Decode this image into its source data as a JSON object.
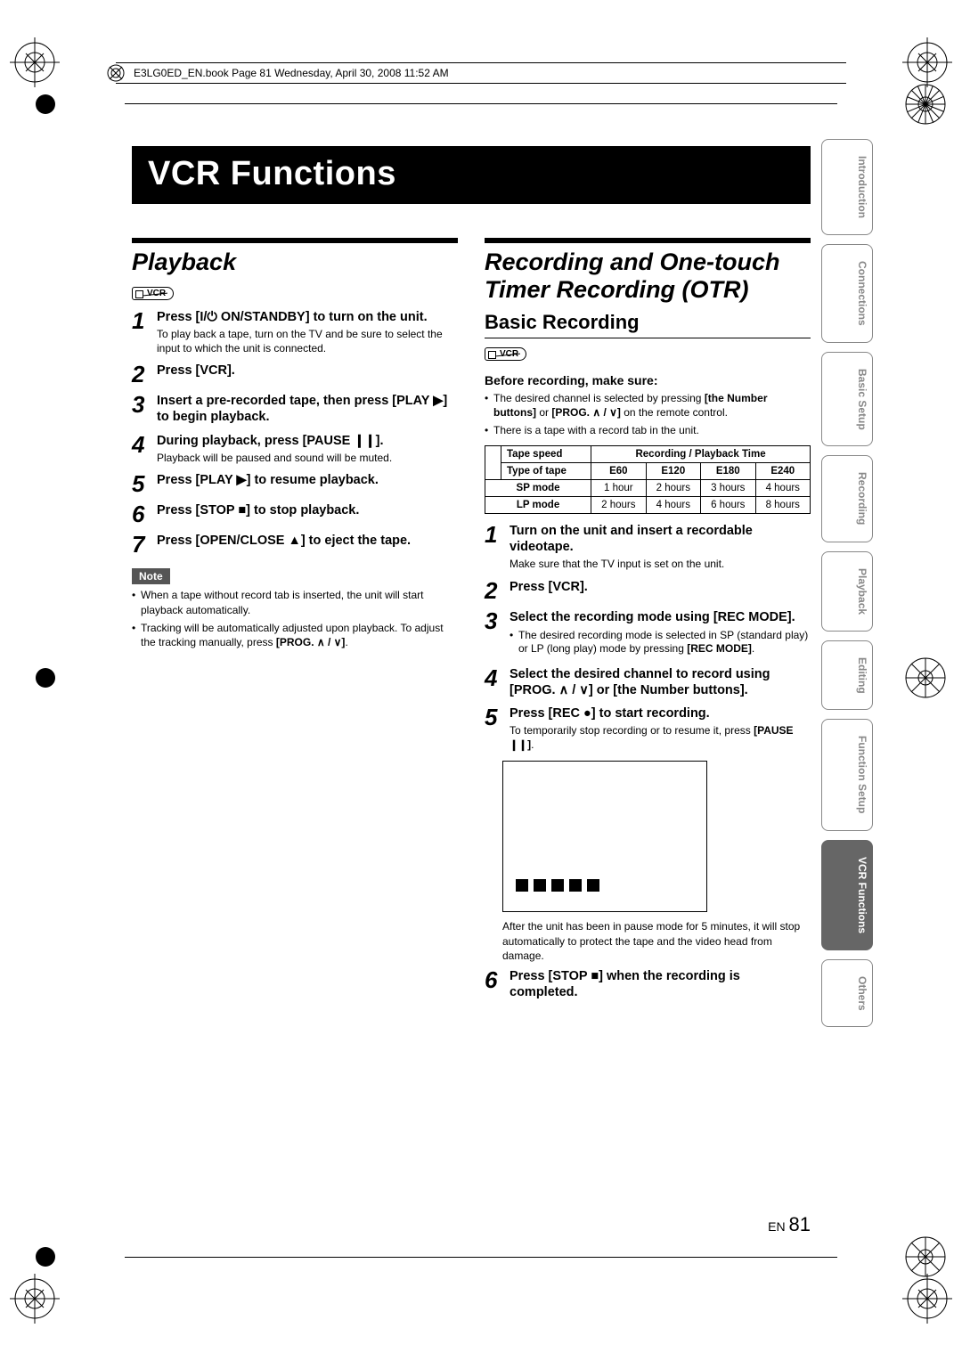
{
  "header_book_line": "E3LG0ED_EN.book  Page 81  Wednesday, April 30, 2008  11:52 AM",
  "chapter_title": "VCR Functions",
  "playback": {
    "title": "Playback",
    "vcr_badge": "VCR",
    "steps": [
      {
        "n": "1",
        "lead": "Press [I/⏻ ON/STANDBY] to turn on the unit.",
        "note": "To play back a tape, turn on the TV and be sure to select the input to which the unit is connected."
      },
      {
        "n": "2",
        "lead": "Press [VCR]."
      },
      {
        "n": "3",
        "lead": "Insert a pre-recorded tape, then press [PLAY ▶] to begin playback."
      },
      {
        "n": "4",
        "lead": "During playback, press [PAUSE ❙❙].",
        "note": "Playback will be paused and sound will be muted."
      },
      {
        "n": "5",
        "lead": "Press [PLAY ▶] to resume playback."
      },
      {
        "n": "6",
        "lead": "Press [STOP ■] to stop playback."
      },
      {
        "n": "7",
        "lead": "Press [OPEN/CLOSE ▲] to eject the tape."
      }
    ],
    "note_label": "Note",
    "notes": [
      "When a tape without record tab is inserted, the unit will start playback automatically.",
      "Tracking will be automatically adjusted upon playback. To adjust the tracking manually, press [PROG. ∧ / ∨]."
    ]
  },
  "recording": {
    "title": "Recording and One-touch Timer Recording (OTR)",
    "subtitle": "Basic Recording",
    "vcr_badge": "VCR",
    "before_label": "Before recording, make sure:",
    "before_bullets": [
      "The desired channel is selected by pressing [the Number buttons] or [PROG. ∧ / ∨] on the remote control.",
      "There is a tape with a record tab in the unit."
    ],
    "table": {
      "header_left": "Tape speed",
      "header_right": "Recording / Playback Time",
      "type_label": "Type of tape",
      "cols": [
        "E60",
        "E120",
        "E180",
        "E240"
      ],
      "rows": [
        {
          "label": "SP mode",
          "vals": [
            "1 hour",
            "2 hours",
            "3 hours",
            "4 hours"
          ]
        },
        {
          "label": "LP mode",
          "vals": [
            "2 hours",
            "4 hours",
            "6 hours",
            "8 hours"
          ]
        }
      ]
    },
    "steps": [
      {
        "n": "1",
        "lead": "Turn on the unit and insert a recordable videotape.",
        "note": "Make sure that the TV input is set on the unit."
      },
      {
        "n": "2",
        "lead": "Press [VCR]."
      },
      {
        "n": "3",
        "lead": "Select the recording mode using [REC MODE].",
        "sub": [
          "The desired recording mode is selected in SP (standard play) or LP (long play) mode by pressing [REC MODE]."
        ]
      },
      {
        "n": "4",
        "lead": "Select the desired channel to record using [PROG. ∧ / ∨] or [the Number buttons]."
      },
      {
        "n": "5",
        "lead": "Press [REC ●] to start recording.",
        "note": "To temporarily stop recording or to resume it, press [PAUSE ❙❙]."
      }
    ],
    "after_pause": "After the unit has been in pause mode for 5 minutes, it will stop automatically to protect the tape and the video head from damage.",
    "step6": {
      "n": "6",
      "lead": "Press [STOP ■] when the recording is completed."
    }
  },
  "tabs": [
    "Introduction",
    "Connections",
    "Basic Setup",
    "Recording",
    "Playback",
    "Editing",
    "Function Setup",
    "VCR Functions",
    "Others"
  ],
  "active_tab_index": 7,
  "page_lang": "EN",
  "page_number": "81",
  "colors": {
    "bar": "#000000",
    "tab_inactive_text": "#888888",
    "tab_active_bg": "#666666"
  }
}
